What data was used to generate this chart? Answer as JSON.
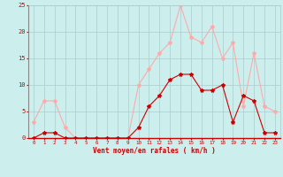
{
  "hours": [
    0,
    1,
    2,
    3,
    4,
    5,
    6,
    7,
    8,
    9,
    10,
    11,
    12,
    13,
    14,
    15,
    16,
    17,
    18,
    19,
    20,
    21,
    22,
    23
  ],
  "vent_moyen": [
    0,
    1,
    1,
    0,
    0,
    0,
    0,
    0,
    0,
    0,
    2,
    6,
    8,
    11,
    12,
    12,
    9,
    9,
    10,
    3,
    8,
    7,
    1,
    1
  ],
  "vent_rafales": [
    3,
    7,
    7,
    2,
    0,
    0,
    0,
    0,
    0,
    0,
    10,
    13,
    16,
    18,
    25,
    19,
    18,
    21,
    15,
    18,
    6,
    16,
    6,
    5
  ],
  "color_moyen": "#cc0000",
  "color_rafales": "#ffaaaa",
  "bg_color": "#cceeed",
  "grid_color": "#aacccc",
  "axis_color": "#cc0000",
  "xlabel": "Vent moyen/en rafales ( km/h )",
  "ylim": [
    0,
    25
  ],
  "yticks": [
    0,
    5,
    10,
    15,
    20,
    25
  ],
  "marker": "*",
  "linewidth": 0.8,
  "markersize": 3
}
